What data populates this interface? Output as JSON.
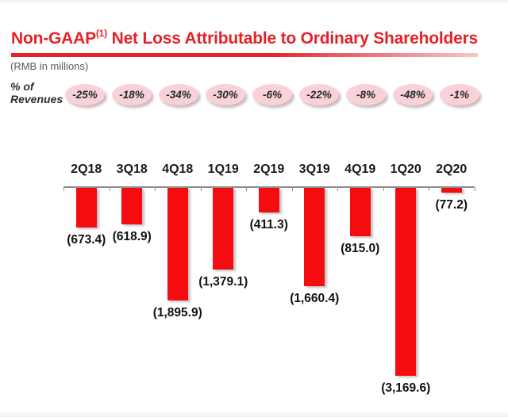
{
  "header": {
    "title_prefix": "Non-GAAP",
    "title_sup": "(1)",
    "title_rest": " Net Loss Attributable to Ordinary Shareholders",
    "unit_note": "(RMB in millions)"
  },
  "pct_row": {
    "label_line1": "% of",
    "label_line2": "Revenues"
  },
  "colors": {
    "title_red": "#e3222a",
    "bar_red": "#f40c10",
    "bubble_pink": "#f8d2d6",
    "axis_gray": "#8c8c8c"
  },
  "chart_data": {
    "type": "bar",
    "title": "Non-GAAP(1) Net Loss Attributable to Ordinary Shareholders",
    "unit": "RMB in millions",
    "categories": [
      "2Q18",
      "3Q18",
      "4Q18",
      "1Q19",
      "2Q19",
      "3Q19",
      "4Q19",
      "1Q20",
      "2Q20"
    ],
    "series": [
      {
        "name": "Non-GAAP net loss attributable to ordinary shareholders (RMB millions)",
        "values": [
          -673.4,
          -618.9,
          -1895.9,
          -1379.1,
          -411.3,
          -1660.4,
          -815.0,
          -3169.6,
          -77.2
        ],
        "labels": [
          "(673.4)",
          "(618.9)",
          "(1,895.9)",
          "(1,379.1)",
          "(411.3)",
          "(1,660.4)",
          "(815.0)",
          "(3,169.6)",
          "(77.2)"
        ]
      },
      {
        "name": "% of Revenues",
        "values": [
          -25,
          -18,
          -34,
          -30,
          -6,
          -22,
          -8,
          -48,
          -1
        ],
        "labels": [
          "-25%",
          "-18%",
          "-34%",
          "-30%",
          "-6%",
          "-22%",
          "-8%",
          "-48%",
          "-1%"
        ]
      }
    ],
    "ylim": [
      -3500,
      0
    ],
    "bar_direction": "down",
    "grid": false,
    "legend": "none"
  }
}
